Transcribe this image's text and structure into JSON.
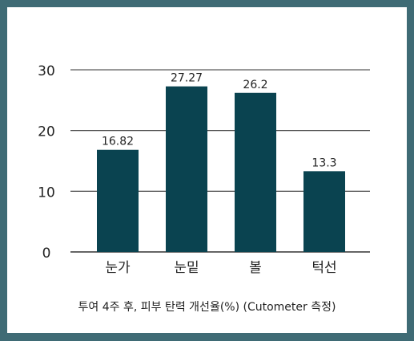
{
  "chart_data": {
    "type": "bar",
    "categories": [
      "눈가",
      "눈밑",
      "볼",
      "턱선"
    ],
    "values": [
      16.82,
      27.27,
      26.2,
      13.3
    ],
    "data_labels": [
      "16.82",
      "27.27",
      "26.2",
      "13.3"
    ],
    "ylim": [
      0,
      30
    ],
    "yticks": [
      0,
      10,
      20,
      30
    ],
    "grid": true,
    "caption": "투여 4주 후, 피부 탄력 개선율(%) (Cutometer 측정)",
    "colors": {
      "bar": "#0a4350",
      "grid": "#333333",
      "frame": "#3f6b75",
      "text": "#222222"
    }
  }
}
